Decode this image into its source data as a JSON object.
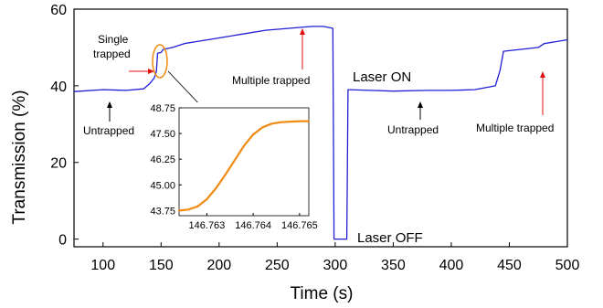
{
  "chart_data": [
    {
      "type": "line",
      "title": "",
      "xlabel": "Time (s)",
      "ylabel": "Transmission (%)",
      "xlim": [
        75,
        500
      ],
      "ylim": [
        -2,
        60
      ],
      "xticks": [
        100,
        150,
        200,
        250,
        300,
        350,
        400,
        450,
        500
      ],
      "yticks": [
        0,
        20,
        40,
        60
      ],
      "grid": false,
      "legend": "none",
      "series": [
        {
          "color": "#1f1fd6",
          "x": [
            75,
            100,
            120,
            135,
            140,
            144,
            146,
            147,
            150,
            152,
            160,
            170,
            180,
            200,
            220,
            240,
            260,
            280,
            290,
            298,
            299,
            300,
            310,
            311,
            312,
            330,
            350,
            380,
            400,
            420,
            438,
            442,
            445,
            460,
            475,
            480,
            490,
            500
          ],
          "y": [
            38.5,
            39,
            38.8,
            39.2,
            40.5,
            42,
            43.75,
            48.5,
            48.7,
            49.5,
            50,
            51,
            51.5,
            52.5,
            53.5,
            54.5,
            55,
            55.5,
            55.5,
            55,
            0,
            0,
            0,
            39,
            39,
            38.8,
            38.6,
            38.8,
            38.8,
            39,
            40,
            44,
            49,
            49.5,
            50,
            51,
            51.5,
            52
          ]
        }
      ],
      "annotations": [
        {
          "text": "Single",
          "text2": "trapped",
          "arrow_color": "#e01010"
        },
        {
          "text": "Untrapped",
          "arrow_color": "#000000"
        },
        {
          "text": "Multiple trapped",
          "arrow_color": "#e01010"
        },
        {
          "text": "Laser ON"
        },
        {
          "text": "Laser OFF"
        },
        {
          "text": "Untrapped",
          "arrow_color": "#000000"
        },
        {
          "text": "Multiple trapped",
          "arrow_color": "#e01010"
        }
      ],
      "highlight_color": "#f08a10"
    },
    {
      "type": "line",
      "title": "",
      "xlim": [
        146.7624,
        146.7652
      ],
      "ylim": [
        43.5,
        48.75
      ],
      "xticks": [
        146.763,
        146.764,
        146.765
      ],
      "xtick_labels": [
        "146.763",
        "146.764",
        "146.765"
      ],
      "yticks": [
        43.75,
        45.0,
        46.25,
        47.5,
        48.75
      ],
      "ytick_labels": [
        "43.75",
        "45.00",
        "46.25",
        "47.50",
        "48.75"
      ],
      "grid": false,
      "legend": "none",
      "series": [
        {
          "color": "#f08a10",
          "x": [
            146.7624,
            146.7626,
            146.7628,
            146.763,
            146.7632,
            146.7634,
            146.7636,
            146.7638,
            146.764,
            146.7642,
            146.7644,
            146.7646,
            146.7648,
            146.765,
            146.7652
          ],
          "y": [
            43.75,
            43.8,
            43.95,
            44.3,
            44.85,
            45.5,
            46.2,
            46.9,
            47.45,
            47.8,
            47.98,
            48.05,
            48.08,
            48.1,
            48.1
          ]
        }
      ]
    }
  ]
}
